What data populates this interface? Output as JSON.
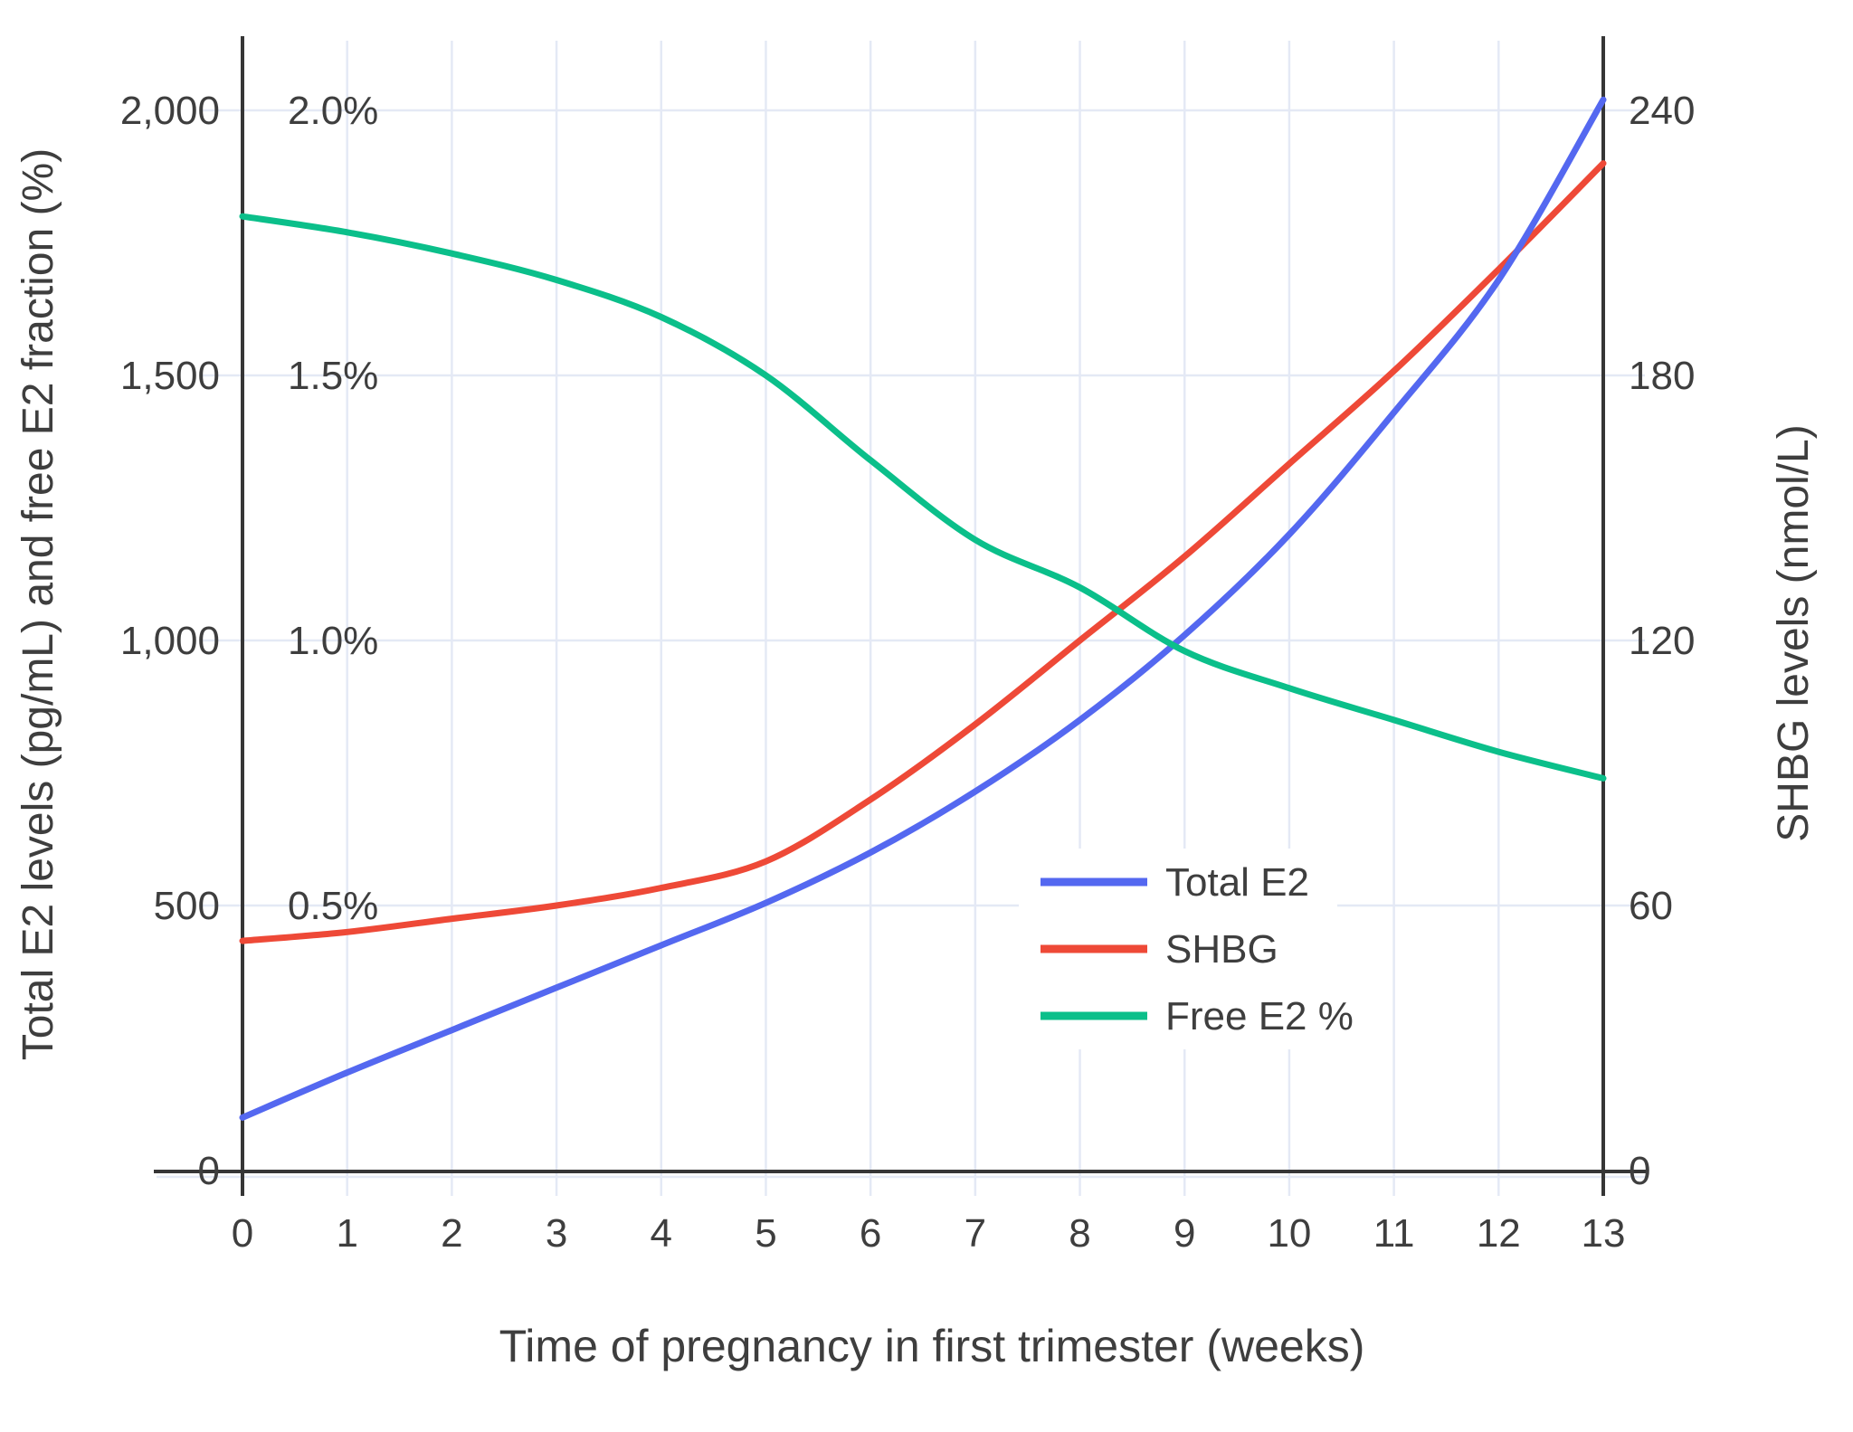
{
  "chart_data": {
    "type": "line",
    "title": "",
    "xlabel": "Time of pregnancy in first trimester (weeks)",
    "ylabel_left": "Total E2 levels (pg/mL) and free E2 fraction (%)",
    "ylabel_right": "SHBG levels (nmol/L)",
    "xlim": [
      0,
      13
    ],
    "ylim_left_pgml": [
      0,
      2000
    ],
    "ylim_left_percent": [
      0,
      2.0
    ],
    "ylim_right_nmoll": [
      0,
      240
    ],
    "grid": true,
    "legend_position": "inside-right-middle",
    "x_weeks": [
      0,
      1,
      2,
      3,
      4,
      5,
      6,
      7,
      8,
      9,
      10,
      11,
      12,
      13
    ],
    "series": [
      {
        "name": "Total E2",
        "axis": "left",
        "units": "pg/mL",
        "color": "#5468F0",
        "values": [
          100,
          185,
          265,
          345,
          425,
          505,
          600,
          715,
          850,
          1010,
          1200,
          1430,
          1680,
          2020
        ]
      },
      {
        "name": "SHBG",
        "axis": "right",
        "units": "nmol/L",
        "color": "#EE4937",
        "values": [
          52,
          54,
          57,
          60,
          64,
          70,
          84,
          101,
          120,
          139,
          160,
          181,
          204,
          228
        ]
      },
      {
        "name": "Free E2 %",
        "axis": "left-percent",
        "units": "%",
        "color": "#0BBF8A",
        "values": [
          1.8,
          1.77,
          1.73,
          1.68,
          1.61,
          1.5,
          1.34,
          1.19,
          1.1,
          0.98,
          0.91,
          0.85,
          0.79,
          0.74
        ]
      }
    ],
    "left_ticks": [
      {
        "label": "0",
        "value": 0
      },
      {
        "label": "500",
        "value": 500
      },
      {
        "label": "1,000",
        "value": 1000
      },
      {
        "label": "1,500",
        "value": 1500
      },
      {
        "label": "2,000",
        "value": 2000
      }
    ],
    "percent_labels": [
      {
        "label": "0.5%",
        "value": 0.5
      },
      {
        "label": "1.0%",
        "value": 1.0
      },
      {
        "label": "1.5%",
        "value": 1.5
      },
      {
        "label": "2.0%",
        "value": 2.0
      }
    ],
    "right_ticks": [
      {
        "label": "0",
        "value": 0
      },
      {
        "label": "60",
        "value": 60
      },
      {
        "label": "120",
        "value": 120
      },
      {
        "label": "180",
        "value": 180
      },
      {
        "label": "240",
        "value": 240
      }
    ],
    "x_ticks": [
      {
        "label": "0",
        "value": 0
      },
      {
        "label": "1",
        "value": 1
      },
      {
        "label": "2",
        "value": 2
      },
      {
        "label": "3",
        "value": 3
      },
      {
        "label": "4",
        "value": 4
      },
      {
        "label": "5",
        "value": 5
      },
      {
        "label": "6",
        "value": 6
      },
      {
        "label": "7",
        "value": 7
      },
      {
        "label": "8",
        "value": 8
      },
      {
        "label": "9",
        "value": 9
      },
      {
        "label": "10",
        "value": 10
      },
      {
        "label": "11",
        "value": 11
      },
      {
        "label": "12",
        "value": 12
      },
      {
        "label": "13",
        "value": 13
      }
    ]
  },
  "colors": {
    "background": "#FFFFFF",
    "grid": "#E4E9F5",
    "axis": "#363636",
    "text": "#3E3E3E",
    "legend_background": "#FFFFFF"
  }
}
